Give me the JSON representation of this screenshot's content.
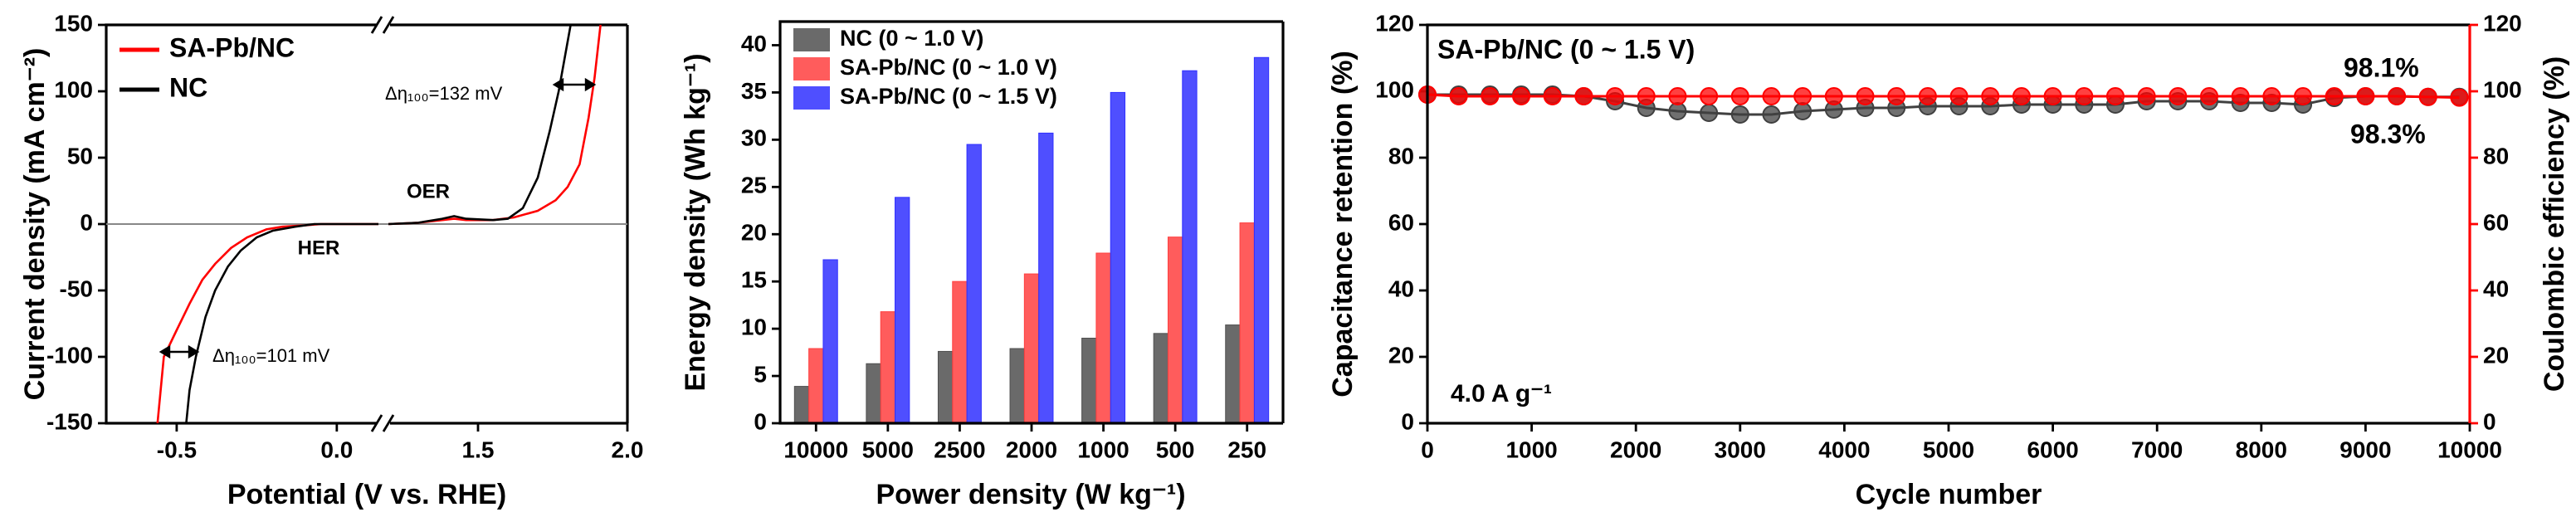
{
  "chart_data": [
    {
      "type": "line",
      "xlabel": "Potential (V vs. RHE)",
      "ylabel": "Current density (mA cm⁻²)",
      "xlim": [
        -0.72,
        2.0
      ],
      "xbreak": [
        0.13,
        1.2
      ],
      "ylim": [
        -150,
        150
      ],
      "xticks": [
        -0.5,
        {
          "value": 0,
          "label": "0.0"
        },
        1.5,
        {
          "value": 2,
          "label": "2.0"
        }
      ],
      "yticks": [
        -150,
        -100,
        -50,
        0,
        50,
        100,
        150
      ],
      "series": [
        {
          "name": "SA-Pb/NC",
          "color": "#ff0000",
          "x": [
            -0.56,
            -0.54,
            -0.5,
            -0.46,
            -0.42,
            -0.38,
            -0.33,
            -0.28,
            -0.22,
            -0.17,
            -0.1,
            -0.05,
            0.13,
            0.5,
            1.2,
            1.3,
            1.38,
            1.42,
            1.46,
            1.55,
            1.62,
            1.7,
            1.76,
            1.8,
            1.84,
            1.87,
            1.89,
            1.91
          ],
          "values": [
            -150,
            -100,
            -80,
            -60,
            -42,
            -30,
            -18,
            -10,
            -4,
            -2,
            -1,
            0,
            0,
            null,
            0,
            1,
            3,
            4,
            3,
            3,
            5,
            10,
            18,
            28,
            45,
            80,
            110,
            150
          ]
        },
        {
          "name": "NC",
          "color": "#000000",
          "x": [
            -0.47,
            -0.46,
            -0.44,
            -0.41,
            -0.38,
            -0.34,
            -0.3,
            -0.25,
            -0.2,
            -0.13,
            -0.07,
            0.13,
            0.5,
            1.2,
            1.3,
            1.38,
            1.42,
            1.46,
            1.55,
            1.6,
            1.65,
            1.7,
            1.74,
            1.77,
            1.79,
            1.81
          ],
          "values": [
            -150,
            -125,
            -100,
            -70,
            -50,
            -32,
            -20,
            -10,
            -5,
            -2,
            0,
            0,
            null,
            0,
            1,
            4,
            6,
            4,
            3,
            4,
            12,
            35,
            70,
            100,
            125,
            150
          ]
        }
      ],
      "annotations": [
        {
          "text": "OER"
        },
        {
          "text": "HER"
        },
        {
          "text": "Δη₁₀₀=132 mV"
        },
        {
          "text": "Δη₁₀₀=101 mV"
        }
      ]
    },
    {
      "type": "bar",
      "xlabel": "Power density (W kg⁻¹)",
      "ylabel": "Energy density (Wh kg⁻¹)",
      "categories": [
        "10000",
        "5000",
        "2500",
        "2000",
        "1000",
        "500",
        "250"
      ],
      "ylim": [
        0,
        42.5
      ],
      "yticks": [
        0,
        5,
        10,
        15,
        20,
        25,
        30,
        35,
        40
      ],
      "series": [
        {
          "name": "NC (0 ~ 1.0 V)",
          "color": "#505050",
          "values": [
            3.9,
            6.3,
            7.6,
            7.9,
            9.0,
            9.5,
            10.4
          ]
        },
        {
          "name": "SA-Pb/NC (0 ~ 1.0 V)",
          "color": "#ff4040",
          "values": [
            7.9,
            11.8,
            15.0,
            15.8,
            18.0,
            19.7,
            21.2
          ]
        },
        {
          "name": "SA-Pb/NC (0 ~ 1.5 V)",
          "color": "#3030ff",
          "values": [
            17.3,
            23.9,
            29.5,
            30.7,
            35.0,
            37.3,
            38.7
          ]
        }
      ]
    },
    {
      "type": "scatter",
      "xlabel": "Cycle number",
      "ylabel": "Capacitance retention (%)",
      "y2label": "Coulombic efficiency (%)",
      "xlim": [
        0,
        10000
      ],
      "xticks": [
        0,
        1000,
        2000,
        3000,
        4000,
        5000,
        6000,
        7000,
        8000,
        9000,
        10000
      ],
      "ylim": [
        0,
        120
      ],
      "yticks": [
        0,
        20,
        40,
        60,
        80,
        100,
        120
      ],
      "y2lim": [
        0,
        120
      ],
      "y2ticks": [
        0,
        20,
        40,
        60,
        80,
        100,
        120
      ],
      "y2color": "#ff0000",
      "x": [
        0,
        300,
        600,
        900,
        1200,
        1500,
        1800,
        2100,
        2400,
        2700,
        3000,
        3300,
        3600,
        3900,
        4200,
        4500,
        4800,
        5100,
        5400,
        5700,
        6000,
        6300,
        6600,
        6900,
        7200,
        7500,
        7800,
        8100,
        8400,
        8700,
        9000,
        9300,
        9600,
        9900
      ],
      "series": [
        {
          "color": "#404040",
          "values": [
            99,
            99,
            99,
            99,
            99,
            98.5,
            97,
            95,
            94,
            93.5,
            93,
            93,
            94,
            94.5,
            95,
            95,
            95.5,
            95.5,
            95.5,
            96,
            96,
            96,
            96,
            97,
            97,
            97,
            96.5,
            96.5,
            96,
            98,
            98.5,
            98.5,
            98.3,
            98.3
          ]
        },
        {
          "color": "#ff0000",
          "axis": "y2",
          "values": [
            99,
            98.5,
            98.5,
            98.5,
            98.5,
            98.5,
            98.5,
            98.5,
            98.5,
            98.5,
            98.5,
            98.5,
            98.5,
            98.5,
            98.5,
            98.5,
            98.5,
            98.5,
            98.5,
            98.5,
            98.5,
            98.5,
            98.5,
            98.5,
            98.5,
            98.5,
            98.5,
            98.5,
            98.5,
            98.5,
            98.5,
            98.5,
            98.3,
            98.1
          ]
        }
      ],
      "annotations": [
        {
          "text": "SA-Pb/NC (0 ~ 1.5 V)",
          "color": "#000000"
        },
        {
          "text": "98.1%",
          "color": "#ff0000"
        },
        {
          "text": "98.3%",
          "color": "#000000"
        },
        {
          "text": "4.0 A g⁻¹",
          "color": "#000000"
        }
      ]
    }
  ]
}
